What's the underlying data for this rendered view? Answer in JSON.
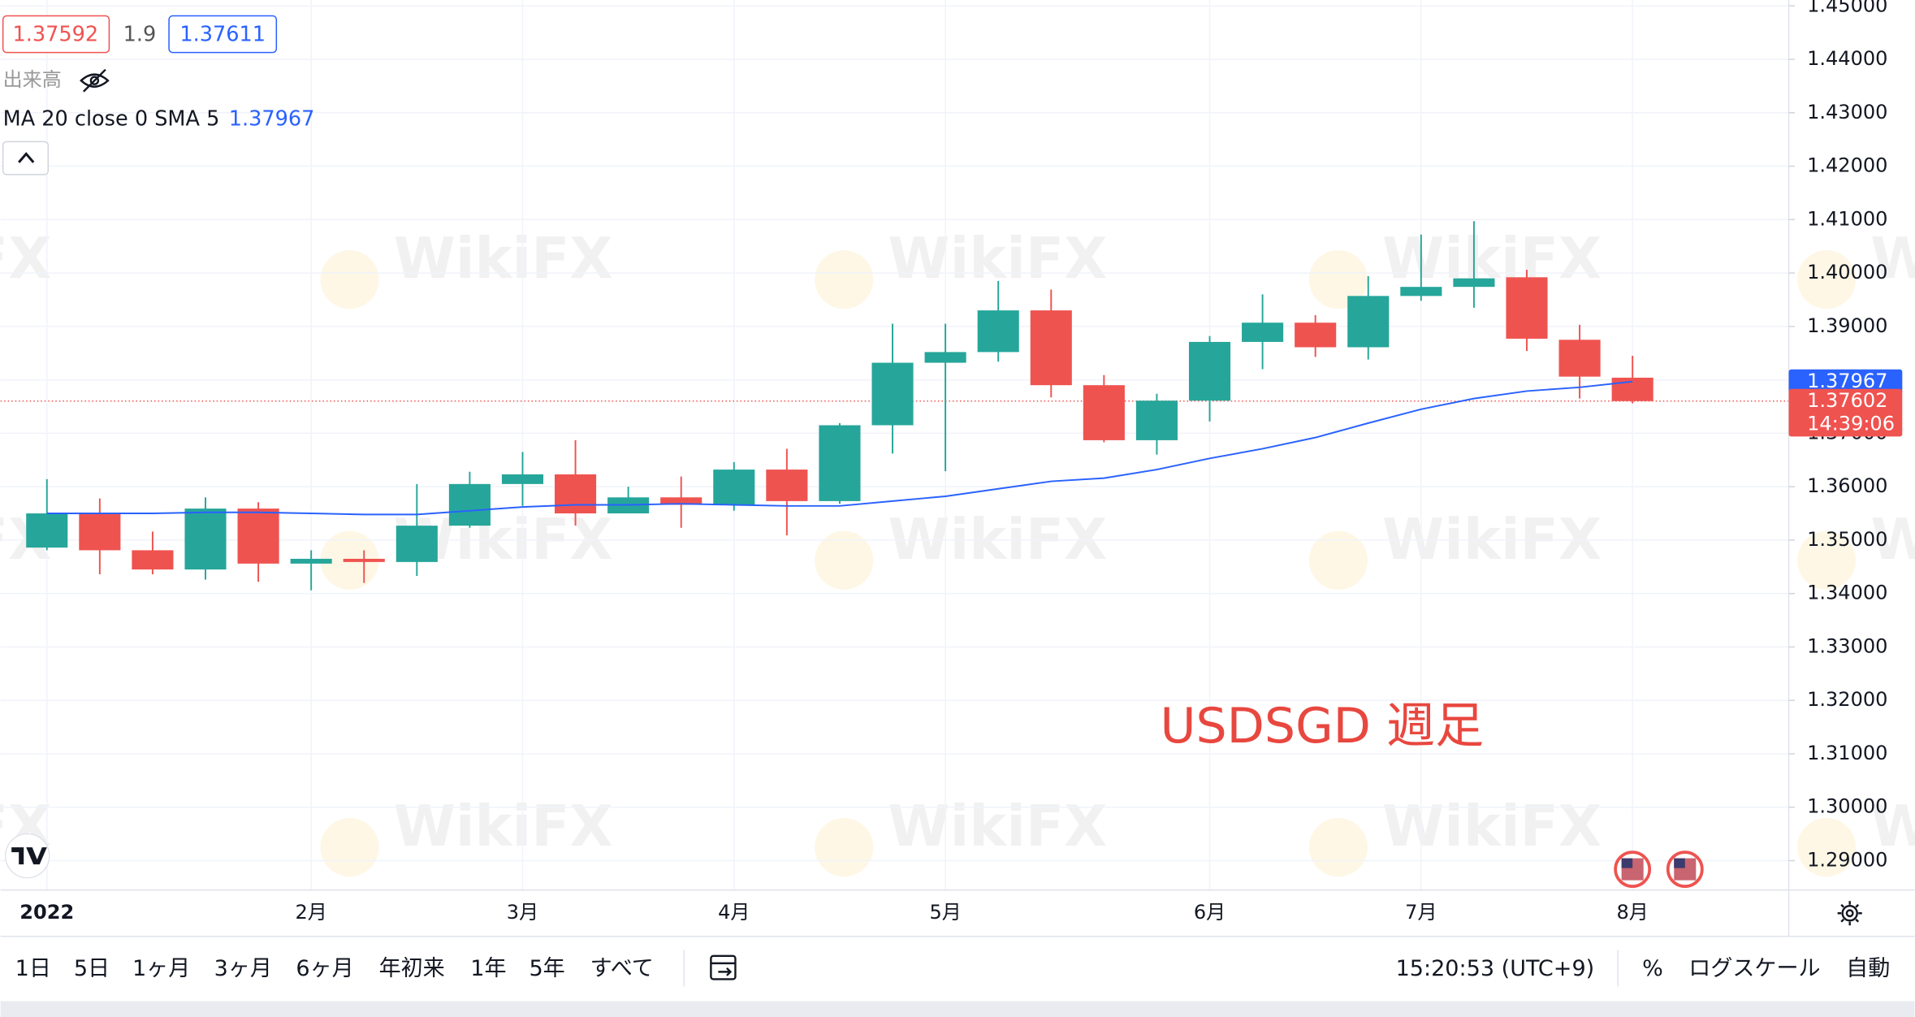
{
  "chart_data": {
    "type": "candlestick",
    "title": "USDSGD 週足",
    "bid": 1.37592,
    "spread": 1.9,
    "ask": 1.37611,
    "volume_label": "出来高",
    "ma": {
      "label": "MA 20 close 0 SMA 5",
      "color": "#2962ff",
      "values": [
        1.355,
        1.355,
        1.355,
        1.3552,
        1.3552,
        1.355,
        1.3548,
        1.3548,
        1.3555,
        1.3562,
        1.3566,
        1.3566,
        1.3568,
        1.3566,
        1.3564,
        1.3564,
        1.3573,
        1.3582,
        1.3596,
        1.361,
        1.3616,
        1.3632,
        1.3653,
        1.3671,
        1.3692,
        1.3719,
        1.3745,
        1.3765,
        1.3779,
        1.3786,
        1.37967
      ]
    },
    "categories": [
      "2022",
      null,
      null,
      null,
      null,
      "2月",
      null,
      null,
      null,
      "3月",
      null,
      null,
      null,
      "4月",
      null,
      null,
      null,
      "5月",
      null,
      null,
      null,
      null,
      "6月",
      null,
      null,
      null,
      "7月",
      null,
      null,
      null,
      "8月"
    ],
    "open": [
      1.3486,
      1.355,
      1.3481,
      1.3445,
      1.3559,
      1.3456,
      1.3465,
      1.3459,
      1.3527,
      1.3605,
      1.3623,
      1.355,
      1.358,
      1.3566,
      1.3632,
      1.3573,
      1.3715,
      1.3832,
      1.3852,
      1.393,
      1.379,
      1.3687,
      1.3761,
      1.3871,
      1.3907,
      1.3861,
      1.3957,
      1.3974,
      1.3992,
      1.3875,
      1.3804
    ],
    "high": [
      1.3614,
      1.3578,
      1.3516,
      1.358,
      1.3571,
      1.3481,
      1.3481,
      1.3605,
      1.3628,
      1.3665,
      1.3687,
      1.36,
      1.3619,
      1.3646,
      1.3671,
      1.3719,
      1.3905,
      1.3905,
      1.3985,
      1.3969,
      1.3809,
      1.3774,
      1.3882,
      1.396,
      1.3921,
      1.3994,
      1.4072,
      1.4097,
      1.4006,
      1.3903,
      1.3845
    ],
    "low": [
      1.3481,
      1.3436,
      1.3436,
      1.3426,
      1.3422,
      1.3406,
      1.342,
      1.3433,
      1.3523,
      1.3564,
      1.3527,
      1.355,
      1.3523,
      1.3555,
      1.3509,
      1.3568,
      1.3662,
      1.3629,
      1.3834,
      1.3767,
      1.3683,
      1.366,
      1.3722,
      1.382,
      1.3843,
      1.3838,
      1.3948,
      1.3935,
      1.3854,
      1.3765,
      1.3756
    ],
    "close": [
      1.355,
      1.3481,
      1.3445,
      1.3559,
      1.3456,
      1.3465,
      1.3459,
      1.3527,
      1.3605,
      1.3623,
      1.355,
      1.358,
      1.3566,
      1.3632,
      1.3573,
      1.3715,
      1.3832,
      1.3852,
      1.393,
      1.379,
      1.3687,
      1.3761,
      1.3871,
      1.3907,
      1.3861,
      1.3957,
      1.3974,
      1.399,
      1.3877,
      1.3806,
      1.37602
    ],
    "up_color": "#26a69a",
    "down_color": "#ef5350",
    "countdown": "14:39:06",
    "ylim": [
      1.2845,
      1.4511
    ],
    "yticks": [
      {
        "value": 1.29,
        "label": "1.29000"
      },
      {
        "value": 1.3,
        "label": "1.30000"
      },
      {
        "value": 1.31,
        "label": "1.31000"
      },
      {
        "value": 1.32,
        "label": "1.32000"
      },
      {
        "value": 1.33,
        "label": "1.33000"
      },
      {
        "value": 1.34,
        "label": "1.34000"
      },
      {
        "value": 1.35,
        "label": "1.35000"
      },
      {
        "value": 1.36,
        "label": "1.36000"
      },
      {
        "value": 1.37,
        "label": "1.37000"
      },
      {
        "value": 1.38,
        "label": "1.38000"
      },
      {
        "value": 1.39,
        "label": "1.39000"
      },
      {
        "value": 1.4,
        "label": "1.40000"
      },
      {
        "value": 1.41,
        "label": "1.41000"
      },
      {
        "value": 1.42,
        "label": "1.42000"
      },
      {
        "value": 1.43,
        "label": "1.43000"
      },
      {
        "value": 1.44,
        "label": "1.44000"
      },
      {
        "value": 1.45,
        "label": "1.45000"
      }
    ],
    "grid": true
  },
  "watermark": "WikiFX",
  "toolbar": {
    "ranges": [
      "1日",
      "5日",
      "1ヶ月",
      "3ヶ月",
      "6ヶ月",
      "年初来",
      "1年",
      "5年",
      "すべて"
    ],
    "time": "15:20:53 (UTC+9)",
    "percent": "%",
    "log": "ログスケール",
    "auto": "自動"
  }
}
